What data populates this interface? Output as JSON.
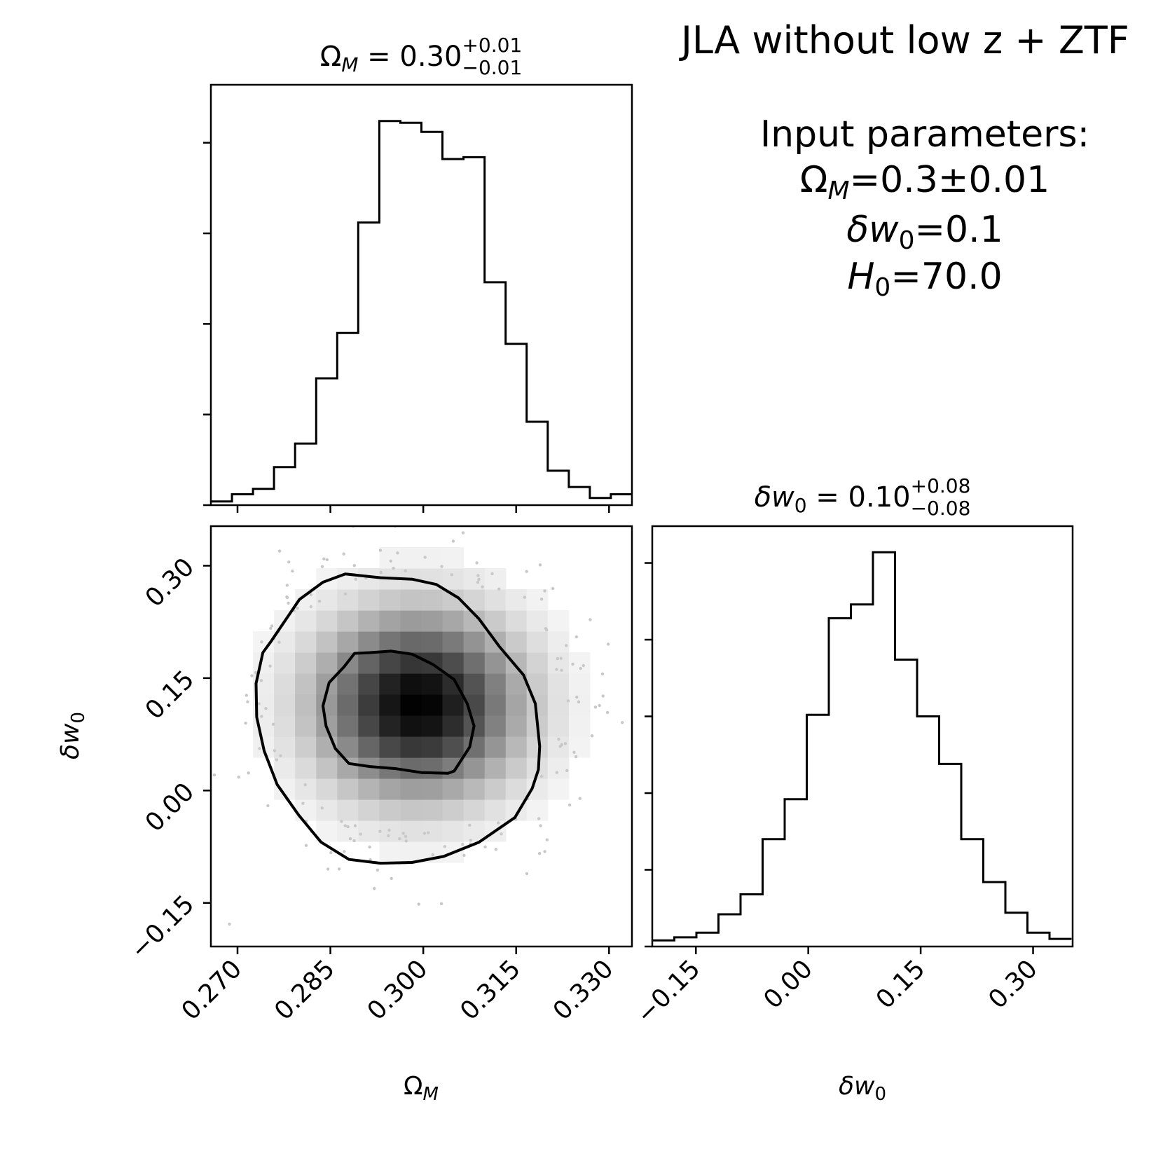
{
  "figure": {
    "title_line": "JLA without low z + ZTF",
    "input_heading": "Input parameters:",
    "input_om_sym": "Ω",
    "input_om_sub": "M",
    "input_om_val": "=0.3±0.01",
    "input_w_sym": "δw",
    "input_w_sub": "0",
    "input_w_val": "=0.1",
    "input_h_sym": "H",
    "input_h_sub": "0",
    "input_h_val": "=70.0"
  },
  "chart_data": [
    {
      "type": "bar",
      "panel": "omega_m histogram",
      "title_sym": "Ω",
      "title_sub": "M",
      "title_eq": " = 0.30",
      "title_up": "+0.01",
      "title_dn": "−0.01",
      "xlim": [
        0.2657,
        0.3337
      ],
      "ylim": [
        0,
        23.2
      ],
      "bin_edges": [
        0.2657,
        0.2691,
        0.2725,
        0.2759,
        0.2793,
        0.2827,
        0.2861,
        0.2895,
        0.2929,
        0.2963,
        0.2997,
        0.3031,
        0.3065,
        0.3099,
        0.3133,
        0.3167,
        0.3201,
        0.3235,
        0.3269,
        0.3303,
        0.3337
      ],
      "counts": [
        0.2,
        0.6,
        0.9,
        2.1,
        3.4,
        7.0,
        9.5,
        15.6,
        21.2,
        21.1,
        20.6,
        19.1,
        19.2,
        12.3,
        8.9,
        4.6,
        1.9,
        1.0,
        0.4,
        0.6
      ],
      "yticks": [
        0,
        5,
        10,
        15,
        20
      ],
      "xticks": [
        0.27,
        0.285,
        0.3,
        0.315,
        0.33
      ],
      "grid": false
    },
    {
      "type": "heatmap",
      "panel": "omega_m vs delta_w0 2D density",
      "xlim": [
        0.2657,
        0.3337
      ],
      "ylim": [
        -0.2082,
        0.3528
      ],
      "xlabel_sym": "Ω",
      "xlabel_sub": "M",
      "ylabel_sym": "δw",
      "ylabel_sub": "0",
      "xticks": [
        0.27,
        0.285,
        0.3,
        0.315,
        0.33
      ],
      "xtick_labels": [
        "0.270",
        "0.285",
        "0.300",
        "0.315",
        "0.330"
      ],
      "yticks": [
        -0.15,
        0,
        0.15,
        0.3
      ],
      "ytick_labels": [
        "−0.15",
        "0.00",
        "0.15",
        "0.30"
      ],
      "density_peak": [
        0.2992,
        0.115
      ],
      "density_sigma": [
        0.0098,
        0.073
      ],
      "contour_inner": [
        [
          0.2914,
          0.184
        ],
        [
          0.2948,
          0.186
        ],
        [
          0.2982,
          0.182
        ],
        [
          0.3016,
          0.168
        ],
        [
          0.305,
          0.148
        ],
        [
          0.3071,
          0.116
        ],
        [
          0.3082,
          0.086
        ],
        [
          0.3075,
          0.058
        ],
        [
          0.305,
          0.026
        ],
        [
          0.304,
          0.023
        ],
        [
          0.2997,
          0.024
        ],
        [
          0.2957,
          0.029
        ],
        [
          0.2914,
          0.032
        ],
        [
          0.288,
          0.036
        ],
        [
          0.2858,
          0.056
        ],
        [
          0.2843,
          0.086
        ],
        [
          0.2838,
          0.113
        ],
        [
          0.2848,
          0.144
        ],
        [
          0.2872,
          0.165
        ],
        [
          0.2889,
          0.183
        ]
      ],
      "contour_outer": [
        [
          0.2755,
          0.2
        ],
        [
          0.28,
          0.255
        ],
        [
          0.2838,
          0.278
        ],
        [
          0.2874,
          0.289
        ],
        [
          0.2931,
          0.284
        ],
        [
          0.2982,
          0.282
        ],
        [
          0.3021,
          0.275
        ],
        [
          0.3057,
          0.257
        ],
        [
          0.309,
          0.229
        ],
        [
          0.3123,
          0.192
        ],
        [
          0.3162,
          0.154
        ],
        [
          0.3181,
          0.116
        ],
        [
          0.3188,
          0.059
        ],
        [
          0.3186,
          0.028
        ],
        [
          0.3176,
          0.003
        ],
        [
          0.3148,
          -0.036
        ],
        [
          0.309,
          -0.069
        ],
        [
          0.3033,
          -0.088
        ],
        [
          0.2982,
          -0.096
        ],
        [
          0.2931,
          -0.097
        ],
        [
          0.288,
          -0.092
        ],
        [
          0.2835,
          -0.069
        ],
        [
          0.2799,
          -0.033
        ],
        [
          0.2764,
          0.008
        ],
        [
          0.2743,
          0.053
        ],
        [
          0.2731,
          0.098
        ],
        [
          0.273,
          0.143
        ],
        [
          0.2741,
          0.184
        ]
      ],
      "grid": false
    },
    {
      "type": "bar",
      "panel": "delta_w0 histogram",
      "title_sym": "δw",
      "title_sub": "0",
      "title_eq": " = 0.10",
      "title_up": "+0.08",
      "title_dn": "−0.08",
      "xlabel_sym": "δw",
      "xlabel_sub": "0",
      "xlim": [
        -0.2082,
        0.3528
      ],
      "ylim": [
        0,
        27.4
      ],
      "bin_edges": [
        -0.2082,
        -0.17875,
        -0.1493,
        -0.11985,
        -0.0904,
        -0.06095,
        -0.0315,
        -0.00205,
        0.0274,
        0.05685,
        0.0863,
        0.11575,
        0.1452,
        0.17465,
        0.2041,
        0.23355,
        0.263,
        0.29245,
        0.3219,
        0.35135
      ],
      "counts": [
        0.4,
        0.6,
        0.9,
        2.1,
        3.4,
        7.0,
        9.6,
        15.1,
        21.4,
        22.3,
        25.7,
        18.7,
        15.0,
        11.9,
        7.0,
        4.2,
        2.2,
        0.9,
        0.5
      ],
      "yticks": [
        0,
        5,
        10,
        15,
        20,
        25
      ],
      "xticks": [
        -0.15,
        0,
        0.15,
        0.3
      ],
      "xtick_labels": [
        "−0.15",
        "0.00",
        "0.15",
        "0.30"
      ],
      "grid": false
    }
  ]
}
